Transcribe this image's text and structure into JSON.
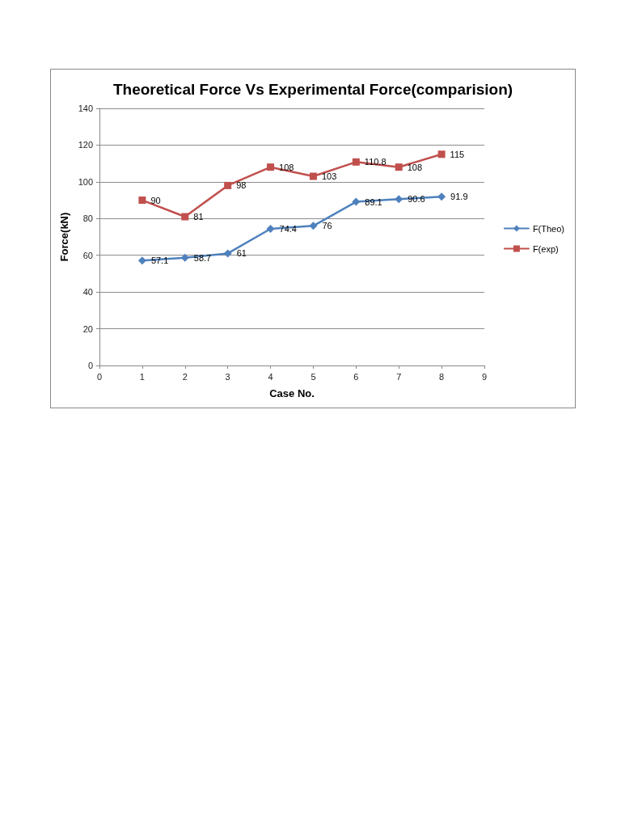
{
  "chart_data": {
    "type": "line",
    "title": "Theoretical Force Vs Experimental Force(comparision)",
    "xlabel": "Case No.",
    "ylabel": "Force(kN)",
    "x": [
      1,
      2,
      3,
      4,
      5,
      6,
      7,
      8
    ],
    "series": [
      {
        "name": "F(Theo)",
        "color": "#4f81bd",
        "marker": "diamond",
        "values": [
          57.1,
          58.7,
          61,
          74.4,
          76,
          89.1,
          90.6,
          91.9
        ]
      },
      {
        "name": "F(exp)",
        "color": "#c0504d",
        "marker": "square",
        "values": [
          90,
          81,
          98,
          108,
          103,
          110.8,
          108,
          115
        ]
      }
    ],
    "xlim": [
      0,
      9
    ],
    "xticks": [
      0,
      1,
      2,
      3,
      4,
      5,
      6,
      7,
      8,
      9
    ],
    "ylim": [
      0,
      140
    ],
    "yticks": [
      0,
      20,
      40,
      60,
      80,
      100,
      120,
      140
    ],
    "grid": "y",
    "legend": "right",
    "data_labels": true,
    "line_style": "solid"
  }
}
